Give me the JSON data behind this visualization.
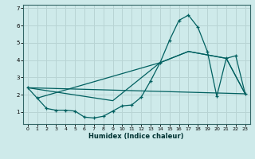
{
  "xlabel": "Humidex (Indice chaleur)",
  "bg_color": "#ceeaea",
  "grid_color": "#b8d4d4",
  "line_color": "#006060",
  "spine_color": "#336666",
  "xlim": [
    -0.5,
    23.5
  ],
  "ylim": [
    0.3,
    7.2
  ],
  "xtick_labels": [
    "0",
    "1",
    "2",
    "3",
    "4",
    "5",
    "6",
    "7",
    "8",
    "9",
    "10",
    "11",
    "12",
    "13",
    "14",
    "15",
    "16",
    "17",
    "18",
    "19",
    "20",
    "21",
    "22",
    "23"
  ],
  "xtick_pos": [
    0,
    1,
    2,
    3,
    4,
    5,
    6,
    7,
    8,
    9,
    10,
    11,
    12,
    13,
    14,
    15,
    16,
    17,
    18,
    19,
    20,
    21,
    22,
    23
  ],
  "yticks": [
    1,
    2,
    3,
    4,
    5,
    6,
    7
  ],
  "main_x": [
    0,
    1,
    2,
    3,
    4,
    5,
    6,
    7,
    8,
    9,
    10,
    11,
    12,
    13,
    14,
    15,
    16,
    17,
    18,
    19,
    20,
    21,
    22,
    23
  ],
  "main_y": [
    2.4,
    1.8,
    1.2,
    1.1,
    1.1,
    1.05,
    0.7,
    0.65,
    0.75,
    1.05,
    1.35,
    1.4,
    1.85,
    2.8,
    3.85,
    5.15,
    6.3,
    6.6,
    5.9,
    4.5,
    1.9,
    4.1,
    4.25,
    2.05
  ],
  "trend1_x": [
    0,
    23
  ],
  "trend1_y": [
    2.4,
    2.05
  ],
  "trend2_x": [
    1,
    14,
    17,
    21,
    23
  ],
  "trend2_y": [
    1.8,
    3.85,
    4.5,
    4.1,
    2.05
  ],
  "trend3_x": [
    0,
    9,
    14,
    17,
    21,
    23
  ],
  "trend3_y": [
    2.4,
    1.65,
    3.85,
    4.5,
    4.1,
    2.05
  ]
}
